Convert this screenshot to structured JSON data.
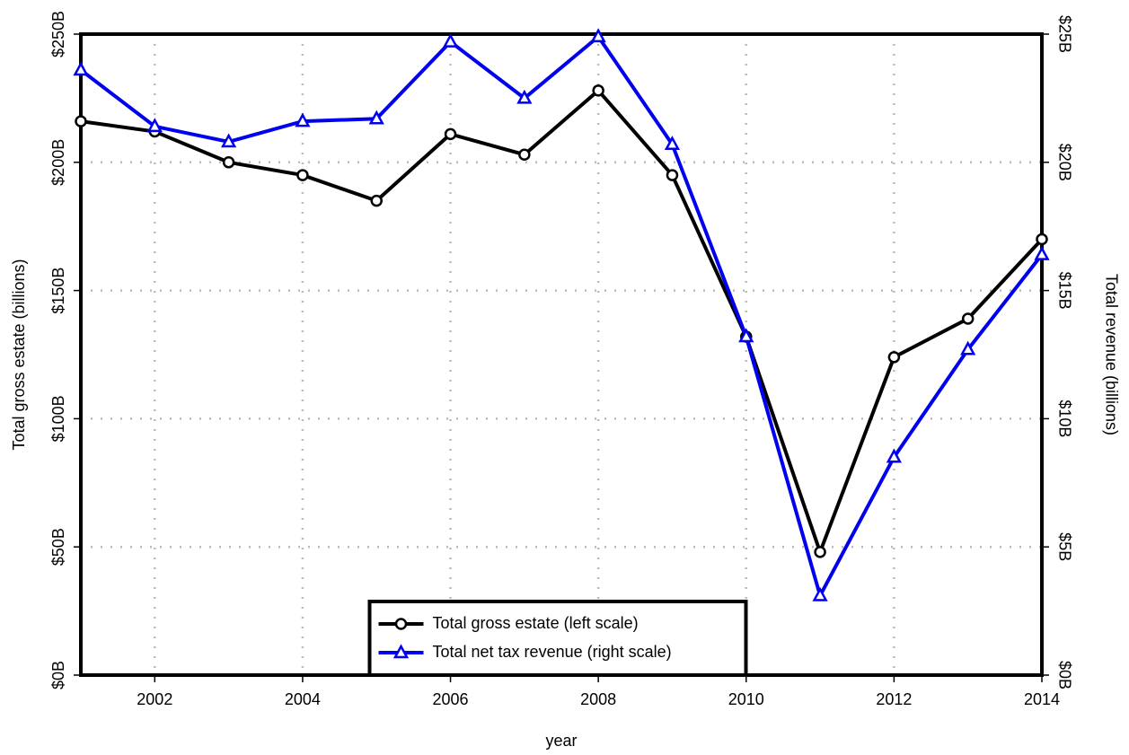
{
  "chart_data": {
    "type": "line",
    "x": [
      2001,
      2002,
      2003,
      2004,
      2005,
      2006,
      2007,
      2008,
      2009,
      2010,
      2011,
      2012,
      2013,
      2014
    ],
    "xlabel": "year",
    "ylabel": "Total gross estate (billions)",
    "y2label": "Total revenue (billions)",
    "xlim": [
      2001,
      2014
    ],
    "xticks": [
      2002,
      2004,
      2006,
      2008,
      2010,
      2012,
      2014
    ],
    "ylim": [
      0,
      250
    ],
    "yticks": [
      {
        "value": 0,
        "label": "$0B"
      },
      {
        "value": 50,
        "label": "$50B"
      },
      {
        "value": 100,
        "label": "$100B"
      },
      {
        "value": 150,
        "label": "$150B"
      },
      {
        "value": 200,
        "label": "$200B"
      },
      {
        "value": 250,
        "label": "$250B"
      }
    ],
    "y2lim": [
      0,
      25
    ],
    "y2ticks": [
      {
        "value": 0,
        "label": "$0B"
      },
      {
        "value": 5,
        "label": "$5B"
      },
      {
        "value": 10,
        "label": "$10B"
      },
      {
        "value": 15,
        "label": "$15B"
      },
      {
        "value": 20,
        "label": "$20B"
      },
      {
        "value": 25,
        "label": "$25B"
      }
    ],
    "grid": true,
    "legend": "lower center",
    "series": [
      {
        "name": "Total gross estate (left scale)",
        "color": "#000000",
        "marker": "circle",
        "values": [
          216,
          212,
          200,
          195,
          185,
          211,
          203,
          228,
          195,
          132,
          48,
          124,
          139,
          170
        ]
      },
      {
        "name": "Total net tax revenue (right scale)",
        "color": "#0000ee",
        "marker": "triangle",
        "axis": "y2",
        "values": [
          23.6,
          21.4,
          20.8,
          21.6,
          21.7,
          24.7,
          22.5,
          24.9,
          20.7,
          13.2,
          3.1,
          8.5,
          12.7,
          16.4
        ]
      }
    ]
  }
}
